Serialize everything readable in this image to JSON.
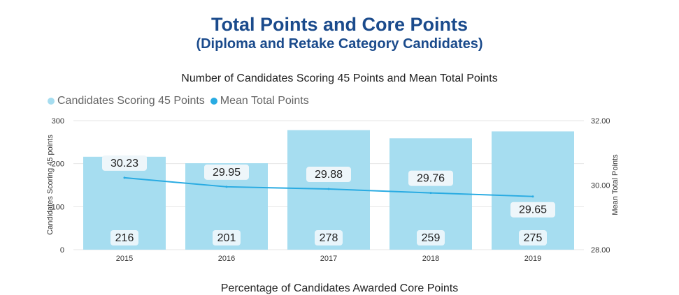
{
  "page": {
    "title": "Total Points and Core Points",
    "subtitle": "(Diploma and Retake Category Candidates)",
    "next_section_title": "Percentage of Candidates Awarded Core Points"
  },
  "chart_data": {
    "type": "bar",
    "title": "Number of Candidates Scoring 45 Points and Mean Total Points",
    "categories": [
      "2015",
      "2016",
      "2017",
      "2018",
      "2019"
    ],
    "series": [
      {
        "name": "Candidates Scoring 45 Points",
        "type": "bar",
        "axis": "left",
        "color": "#a6ddf0",
        "values": [
          216,
          201,
          278,
          259,
          275
        ]
      },
      {
        "name": "Mean Total Points",
        "type": "line",
        "axis": "right",
        "color": "#29abe2",
        "values": [
          30.23,
          29.95,
          29.88,
          29.76,
          29.65
        ]
      }
    ],
    "y_left": {
      "label": "Candidates Scoring 45 points",
      "range": [
        0,
        300
      ],
      "ticks": [
        "0",
        "100",
        "200",
        "300"
      ]
    },
    "y_right": {
      "label": "Mean Total Points",
      "range": [
        28.0,
        32.0
      ],
      "ticks": [
        "28.00",
        "30.00",
        "32.00"
      ]
    },
    "legend_position": "top-left",
    "grid": true,
    "bar_labels": [
      "216",
      "201",
      "278",
      "259",
      "275"
    ],
    "line_labels": [
      "30.23",
      "29.95",
      "29.88",
      "29.76",
      "29.65"
    ]
  }
}
